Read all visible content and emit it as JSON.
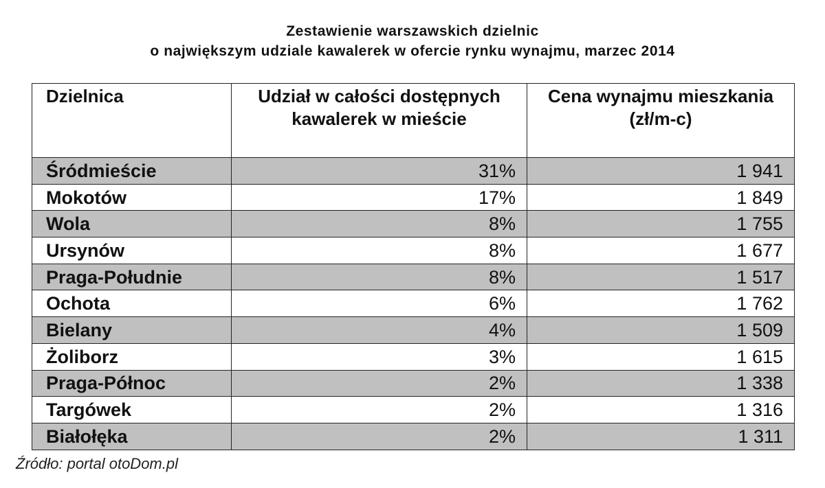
{
  "title": {
    "line1": "Zestawienie warszawskich dzielnic",
    "line2": "o największym udziale kawalerek w ofercie rynku wynajmu, marzec 2014"
  },
  "table": {
    "headers": {
      "district": "Dzielnica",
      "share": "Udział w całości dostępnych kawalerek w mieście",
      "price": "Cena wynajmu mieszkania (zł/m-c)"
    },
    "rows": [
      {
        "district": "Śródmieście",
        "share": "31%",
        "price": "1 941"
      },
      {
        "district": "Mokotów",
        "share": "17%",
        "price": "1 849"
      },
      {
        "district": "Wola",
        "share": "8%",
        "price": "1 755"
      },
      {
        "district": "Ursynów",
        "share": "8%",
        "price": "1 677"
      },
      {
        "district": "Praga-Południe",
        "share": "8%",
        "price": "1 517"
      },
      {
        "district": "Ochota",
        "share": "6%",
        "price": "1 762"
      },
      {
        "district": "Bielany",
        "share": "4%",
        "price": "1 509"
      },
      {
        "district": "Żoliborz",
        "share": "3%",
        "price": "1 615"
      },
      {
        "district": "Praga-Północ",
        "share": "2%",
        "price": "1 338"
      },
      {
        "district": "Targówek",
        "share": "2%",
        "price": "1 316"
      },
      {
        "district": "Białołęka",
        "share": "2%",
        "price": "1 311"
      }
    ],
    "shaded_row_color": "#c0c0c0"
  },
  "source": "Źródło: portal otoDom.pl"
}
